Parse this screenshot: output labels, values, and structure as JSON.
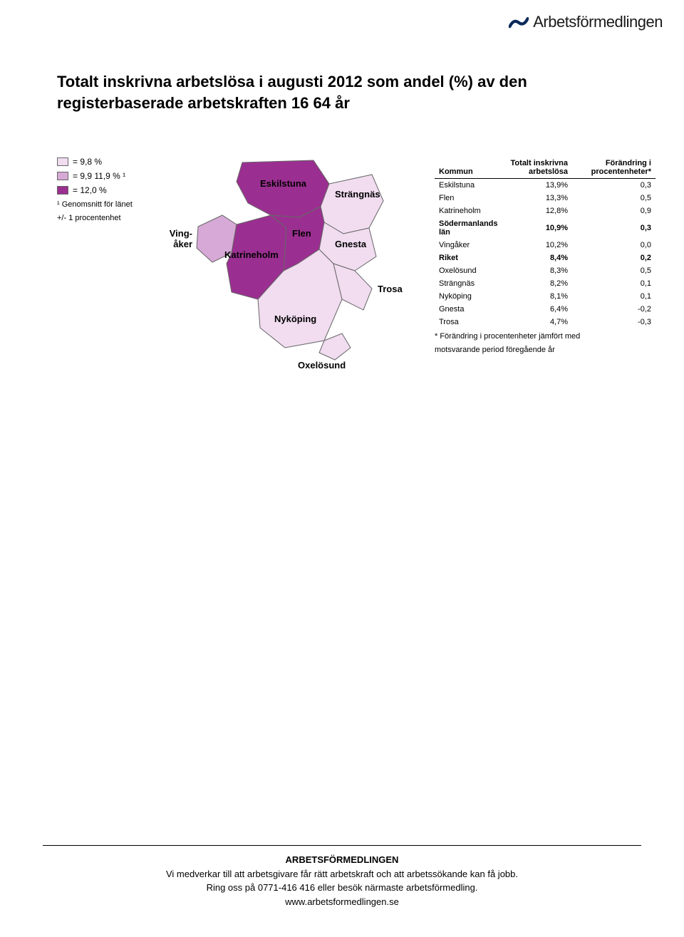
{
  "logo": {
    "text": "Arbetsförmedlingen"
  },
  "title": {
    "line1": "Totalt inskrivna arbetslösa i augusti 2012 som andel (%) av den",
    "line2": "registerbaserade arbetskraften 16 64 år"
  },
  "legend": {
    "colors": {
      "light": "#f1dcf0",
      "mid": "#d7a9d6",
      "dark": "#9b2f91"
    },
    "items": [
      {
        "color": "#f1dcf0",
        "label": "=          9,8 %"
      },
      {
        "color": "#d7a9d6",
        "label": "= 9,9   11,9 % ¹"
      },
      {
        "color": "#9b2f91",
        "label": "= 12,0 %  "
      }
    ],
    "note1": "¹ Genomsnitt för länet",
    "note2": "+/- 1 procentenhet"
  },
  "map": {
    "labels": {
      "vingaker": "Ving-\nåker",
      "eskilstuna": "Eskilstuna",
      "katrineholm": "Katrineholm",
      "flen": "Flen",
      "strangnas": "Strängnäs",
      "gnesta": "Gnesta",
      "nykoping": "Nyköping",
      "trosa": "Trosa",
      "oxelosund": "Oxelösund"
    },
    "region_colors": {
      "vingaker": "#d7a9d6",
      "eskilstuna": "#9b2f91",
      "katrineholm": "#9b2f91",
      "flen": "#9b2f91",
      "strangnas": "#f1dcf0",
      "gnesta": "#f1dcf0",
      "nykoping": "#f1dcf0",
      "trosa": "#f1dcf0",
      "oxelosund": "#f1dcf0"
    }
  },
  "table": {
    "columns": {
      "kommun": "Kommun",
      "totalt": "Totalt inskrivna arbetslösa",
      "forandring": "Förändring i procentenheter*"
    },
    "rows": [
      {
        "kommun": "Eskilstuna",
        "totalt": "13,9%",
        "forandring": "0,3",
        "bold": false
      },
      {
        "kommun": "Flen",
        "totalt": "13,3%",
        "forandring": "0,5",
        "bold": false
      },
      {
        "kommun": "Katrineholm",
        "totalt": "12,8%",
        "forandring": "0,9",
        "bold": false
      },
      {
        "kommun": "Södermanlands län",
        "totalt": "10,9%",
        "forandring": "0,3",
        "bold": true
      },
      {
        "kommun": "Vingåker",
        "totalt": "10,2%",
        "forandring": "0,0",
        "bold": false
      },
      {
        "kommun": "Riket",
        "totalt": "8,4%",
        "forandring": "0,2",
        "bold": true
      },
      {
        "kommun": "Oxelösund",
        "totalt": "8,3%",
        "forandring": "0,5",
        "bold": false
      },
      {
        "kommun": "Strängnäs",
        "totalt": "8,2%",
        "forandring": "0,1",
        "bold": false
      },
      {
        "kommun": "Nyköping",
        "totalt": "8,1%",
        "forandring": "0,1",
        "bold": false
      },
      {
        "kommun": "Gnesta",
        "totalt": "6,4%",
        "forandring": "-0,2",
        "bold": false
      },
      {
        "kommun": "Trosa",
        "totalt": "4,7%",
        "forandring": "-0,3",
        "bold": false
      }
    ],
    "note1": "* Förändring i procentenheter jämfört med",
    "note2": "motsvarande period föregående år"
  },
  "footer": {
    "org": "ARBETSFÖRMEDLINGEN",
    "line1": "Vi medverkar till att arbetsgivare får rätt arbetskraft och att arbetssökande kan få jobb.",
    "line2": "Ring oss på 0771-416 416 eller besök närmaste arbetsförmedling.",
    "url": "www.arbetsformedlingen.se"
  }
}
